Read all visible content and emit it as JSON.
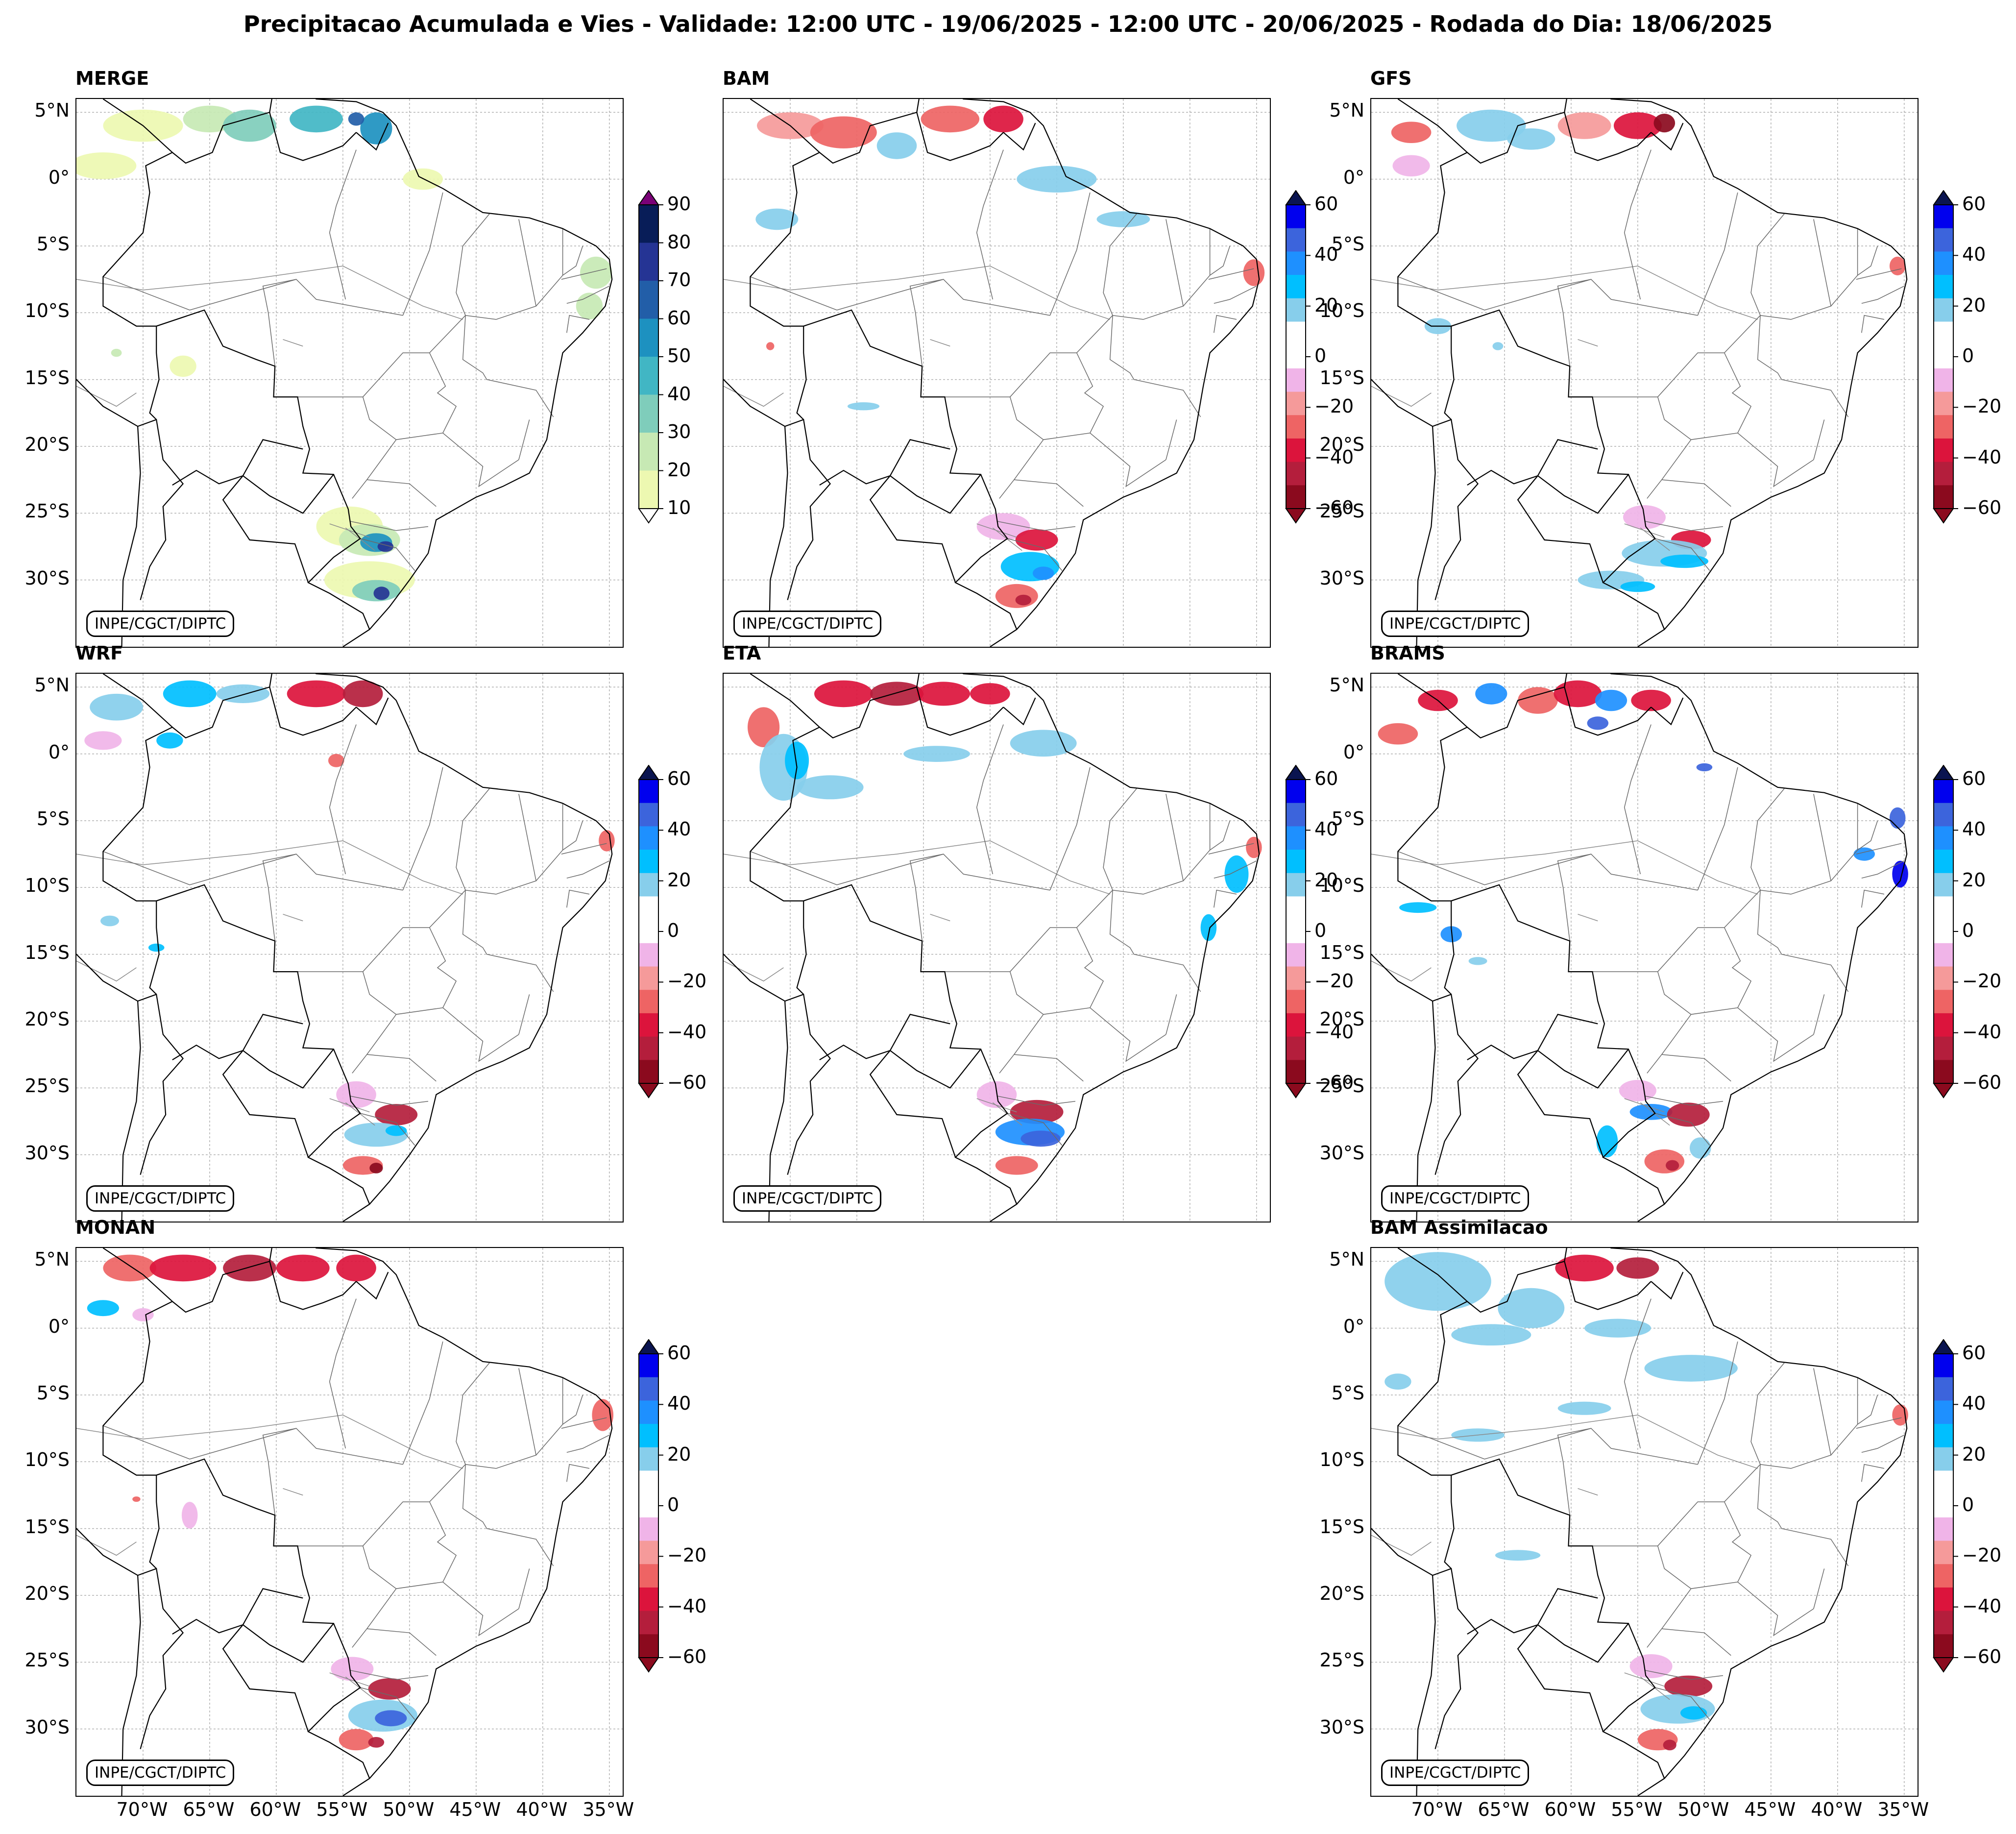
{
  "title": "Precipitacao Acumulada e Vies - Validade: 12:00 UTC - 19/06/2025 - 12:00 UTC - 20/06/2025 - Rodada do Dia: 18/06/2025",
  "credit": "INPE/CGCT/DIPTC",
  "lat_ticks": [
    "5°N",
    "0°",
    "5°S",
    "10°S",
    "15°S",
    "20°S",
    "25°S",
    "30°S"
  ],
  "lon_ticks": [
    "70°W",
    "65°W",
    "60°W",
    "55°W",
    "50°W",
    "45°W",
    "40°W",
    "35°W"
  ],
  "colorbars": {
    "precip": {
      "ticks": [
        "90",
        "80",
        "70",
        "60",
        "50",
        "40",
        "30",
        "20",
        "10"
      ],
      "colors": [
        "#081d58",
        "#253494",
        "#225ea8",
        "#1d91c0",
        "#41b6c4",
        "#7fcdbb",
        "#c7e9b4",
        "#edf8b1"
      ],
      "over_color": "#7a0177",
      "under_color": "#ffffff"
    },
    "bias": {
      "ticks": [
        "60",
        "40",
        "20",
        "0",
        "−20",
        "−40",
        "−60"
      ],
      "colors": [
        "#0000ee",
        "#3c64dc",
        "#1e90ff",
        "#00bfff",
        "#87ceeb",
        "#ffffff",
        "#ffffff",
        "#f0b4e8",
        "#f59a9a",
        "#ee6464",
        "#dc143c",
        "#b41e3c",
        "#8b0a1e"
      ],
      "over_color": "#0a1450",
      "under_color": "#8b0a1e"
    }
  },
  "panels": [
    {
      "id": "merge",
      "label": "MERGE",
      "type": "precip"
    },
    {
      "id": "bam",
      "label": "BAM",
      "type": "bias"
    },
    {
      "id": "gfs",
      "label": "GFS",
      "type": "bias"
    },
    {
      "id": "wrf",
      "label": "WRF",
      "type": "bias"
    },
    {
      "id": "eta",
      "label": "ETA",
      "type": "bias"
    },
    {
      "id": "brams",
      "label": "BRAMS",
      "type": "bias"
    },
    {
      "id": "monan",
      "label": "MONAN",
      "type": "bias"
    },
    {
      "id": "bamassim",
      "label": "BAM Assimilacao",
      "type": "bias"
    }
  ]
}
